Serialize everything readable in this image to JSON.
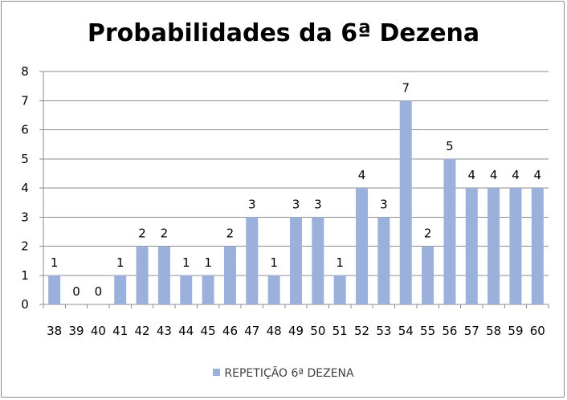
{
  "chart_data": {
    "type": "bar",
    "title": "Probabilidades da 6ª Dezena",
    "xlabel": "",
    "ylabel": "",
    "ylim": [
      0,
      8
    ],
    "yticks": [
      "0",
      "1",
      "2",
      "3",
      "4",
      "5",
      "6",
      "7",
      "8"
    ],
    "categories": [
      "38",
      "39",
      "40",
      "41",
      "42",
      "43",
      "44",
      "45",
      "46",
      "47",
      "48",
      "49",
      "50",
      "51",
      "52",
      "53",
      "54",
      "55",
      "56",
      "57",
      "58",
      "59",
      "60"
    ],
    "series": [
      {
        "name": "REPETIÇÃO 6ª DEZENA",
        "values": [
          1,
          0,
          0,
          1,
          2,
          2,
          1,
          1,
          2,
          3,
          1,
          3,
          3,
          1,
          4,
          3,
          7,
          2,
          5,
          4,
          4,
          4,
          4
        ],
        "color": "#9bb1db"
      }
    ],
    "data_labels": true,
    "grid": true,
    "legend_position": "bottom"
  }
}
